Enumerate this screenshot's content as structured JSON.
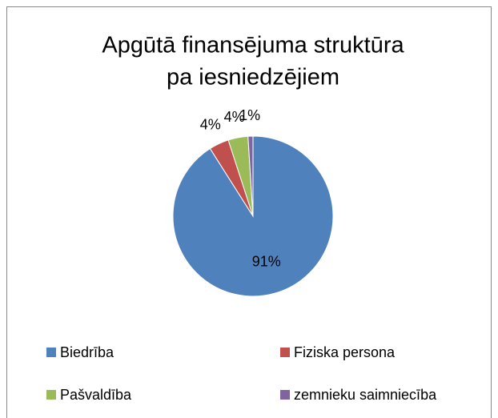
{
  "chart_data": {
    "type": "pie",
    "title": [
      "Apgūtā finansējuma struktūra",
      "pa iesniedzējiem"
    ],
    "categories": [
      "Biedrība",
      "Fiziska persona",
      "Pašvaldība",
      "zemnieku saimniecība"
    ],
    "values": [
      91,
      4,
      4,
      1
    ],
    "value_labels": [
      "91%",
      "4%",
      "4%",
      "1%"
    ],
    "colors": [
      "#4f81bd",
      "#c0504d",
      "#9bbb59",
      "#8064a2"
    ],
    "legend": "bottom"
  }
}
